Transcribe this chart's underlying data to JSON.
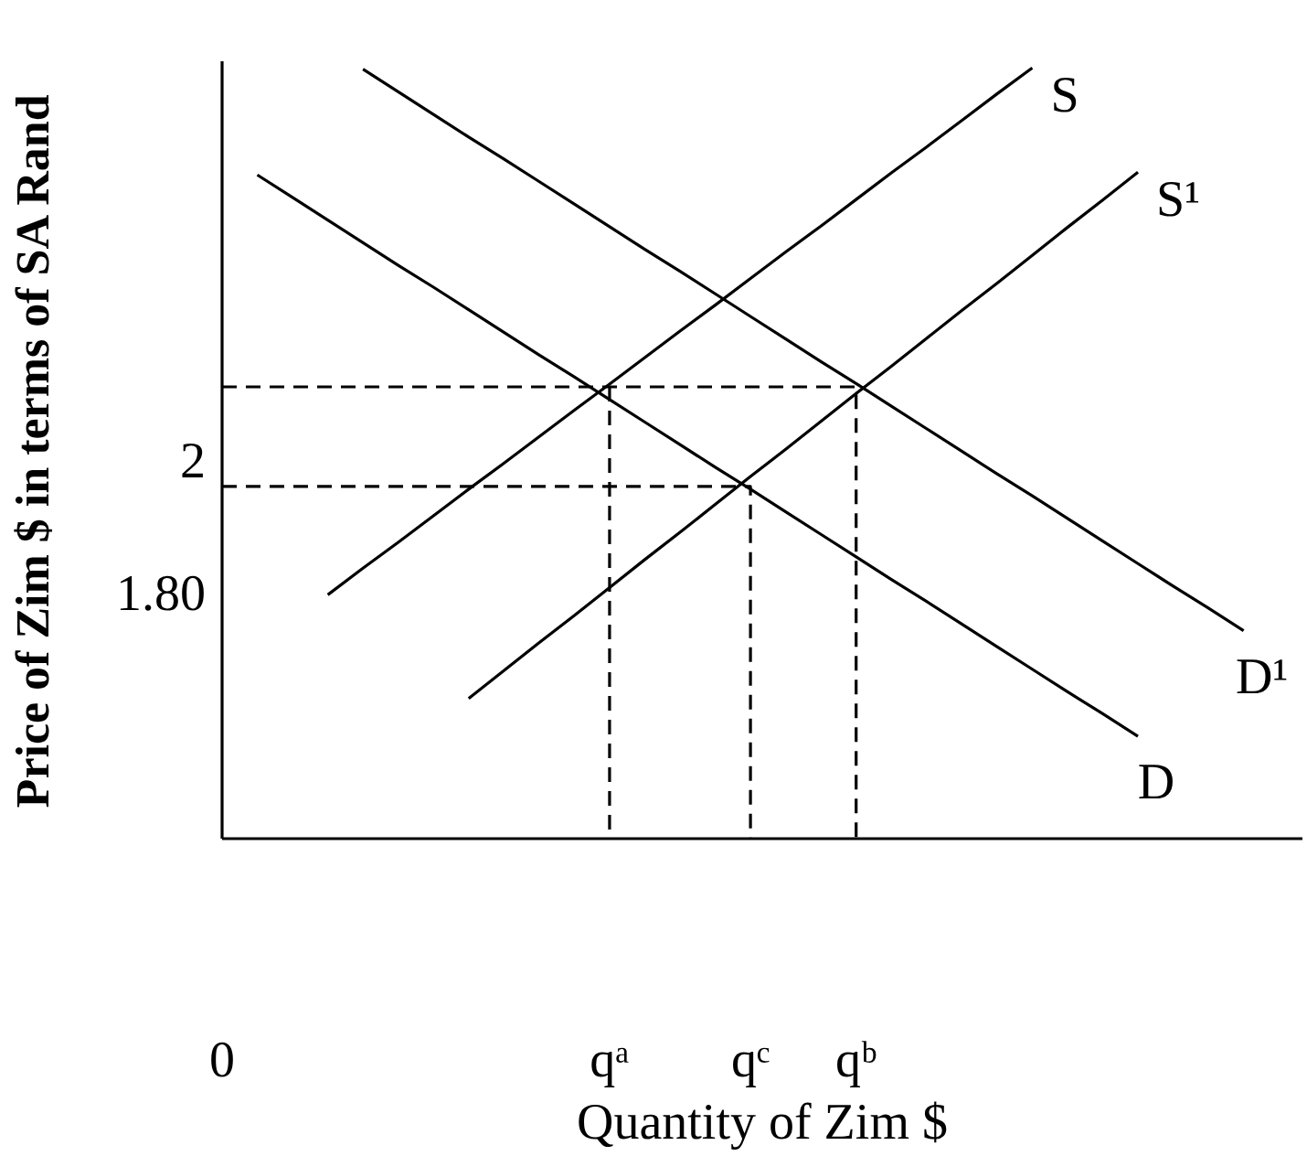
{
  "chart_data": {
    "type": "line",
    "xlabel": "Quantity of Zim $",
    "ylabel": "Price of Zim $ in terms of SA Rand",
    "categories": [
      "0",
      null,
      null,
      null,
      null,
      null,
      null,
      null,
      null,
      null,
      null,
      "qᵃ",
      null,
      null,
      null,
      "qᶜ",
      null,
      null,
      "qᵇ",
      null,
      null,
      null,
      null,
      null,
      null,
      null,
      null,
      null,
      null,
      null,
      null
    ],
    "ylim": [
      1.43,
      2.6
    ],
    "yticks": [
      2,
      {
        "value": 1.8,
        "label": "1.80"
      }
    ],
    "line_style": "solid",
    "series": [
      {
        "name": "S",
        "color": "#000000",
        "values": [
          null,
          null,
          null,
          1.797,
          1.837,
          1.876,
          1.916,
          1.956,
          1.995,
          2.035,
          2.075,
          2.114,
          2.154,
          2.194,
          2.233,
          2.273,
          2.313,
          2.352,
          2.392,
          2.432,
          2.471,
          2.511,
          2.551,
          2.59,
          null,
          null,
          null,
          null,
          null,
          null,
          null
        ]
      },
      {
        "name": "S¹",
        "color": "#000000",
        "values": [
          null,
          null,
          null,
          null,
          null,
          null,
          null,
          1.641,
          1.683,
          1.725,
          1.766,
          1.808,
          1.85,
          1.891,
          1.933,
          1.975,
          2.016,
          2.058,
          2.1,
          2.141,
          2.183,
          2.225,
          2.266,
          2.308,
          2.35,
          2.391,
          2.433,
          null,
          null,
          null,
          null
        ]
      },
      {
        "name": "D",
        "color": "#000000",
        "values": [
          null,
          2.429,
          2.395,
          2.361,
          2.327,
          2.293,
          2.26,
          2.226,
          2.192,
          2.158,
          2.125,
          2.091,
          2.057,
          2.023,
          1.989,
          1.956,
          1.922,
          1.888,
          1.854,
          1.82,
          1.787,
          1.753,
          1.719,
          1.685,
          1.651,
          1.618,
          1.584,
          null,
          null,
          null,
          null
        ]
      },
      {
        "name": "D¹",
        "color": "#000000",
        "values": [
          null,
          null,
          null,
          null,
          2.588,
          2.554,
          2.52,
          2.486,
          2.453,
          2.419,
          2.385,
          2.351,
          2.317,
          2.284,
          2.25,
          2.216,
          2.182,
          2.148,
          2.115,
          2.081,
          2.047,
          2.013,
          1.979,
          1.946,
          1.912,
          1.878,
          1.844,
          1.81,
          1.777,
          1.743,
          null
        ]
      },
      {
        "color": "#000000",
        "line_style": "dashed",
        "x": [
          "0",
          "qᵇ",
          "qᵇ"
        ],
        "values": [
          2.11,
          2.11,
          1.43
        ]
      },
      {
        "color": "#000000",
        "line_style": "dashed",
        "x": [
          "qᵃ",
          "qᵃ"
        ],
        "values": [
          2.11,
          1.43
        ]
      },
      {
        "color": "#000000",
        "line_style": "dashed",
        "x": [
          "0",
          "qᶜ",
          "qᶜ"
        ],
        "values": [
          1.96,
          1.96,
          1.43
        ]
      }
    ]
  }
}
